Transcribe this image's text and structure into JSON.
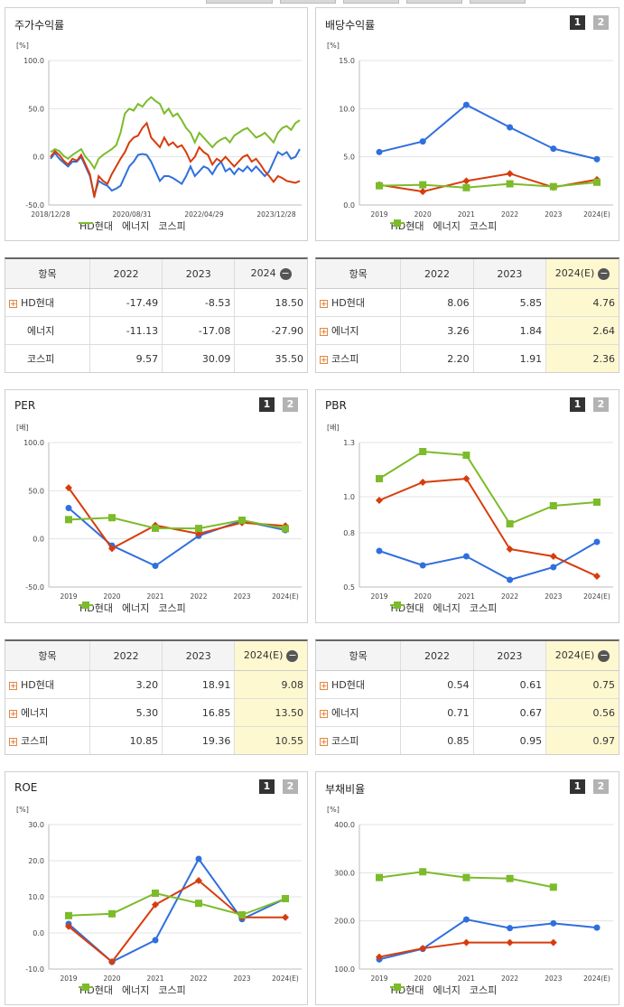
{
  "panels": [
    {
      "id": "stock",
      "title": "주가수익률",
      "unit": "[%]",
      "yticks": [
        "100.0",
        "50.0",
        "0.0",
        "-50.0"
      ],
      "ylim": [
        -50,
        100
      ],
      "xticks": [
        "2018/12/28",
        "2020/08/31",
        "2022/04/29",
        "2023/12/28"
      ],
      "pager": null
    },
    {
      "id": "div",
      "title": "배당수익률",
      "unit": "[%]",
      "yticks": [
        "15.0",
        "10.0",
        "5.0",
        "0.0"
      ],
      "ylim": [
        0,
        15
      ],
      "pager": [
        "1",
        "2"
      ]
    },
    {
      "id": "per",
      "title": "PER",
      "unit": "[배]",
      "yticks": [
        "100.0",
        "50.0",
        "0.0",
        "-50.0"
      ],
      "ylim": [
        -50,
        100
      ],
      "pager": [
        "1",
        "2"
      ]
    },
    {
      "id": "pbr",
      "title": "PBR",
      "unit": "[배]",
      "yticks": [
        "1.3",
        "1.0",
        "0.8",
        "0.5"
      ],
      "ylim": [
        0.5,
        1.3
      ],
      "pager": [
        "1",
        "2"
      ]
    },
    {
      "id": "roe",
      "title": "ROE",
      "unit": "[%]",
      "yticks": [
        "30.0",
        "20.0",
        "10.0",
        "0.0",
        "-10.0"
      ],
      "ylim": [
        -10,
        30
      ],
      "pager": [
        "1",
        "2"
      ]
    },
    {
      "id": "debt",
      "title": "부채비율",
      "unit": "[%]",
      "yticks": [
        "400.0",
        "300.0",
        "200.0",
        "100.0"
      ],
      "ylim": [
        100,
        400
      ],
      "pager": [
        "1",
        "2"
      ]
    }
  ],
  "years": [
    "2019",
    "2020",
    "2021",
    "2022",
    "2023",
    "2024(E)"
  ],
  "series_names": [
    "HD현대",
    "에너지",
    "코스피"
  ],
  "colors": {
    "hd": "#2f6fde",
    "energy": "#d83c0c",
    "kospi": "#7cbb2a"
  },
  "chart_data": [
    {
      "id": "stock",
      "type": "line",
      "title": "주가수익률",
      "ylabel": "[%]",
      "ylim": [
        -50,
        100
      ],
      "x_ticks": [
        "2018/12/28",
        "2020/08/31",
        "2022/04/29",
        "2023/12/28"
      ],
      "series": [
        {
          "name": "HD현대",
          "values": [
            -2,
            4,
            -2,
            -6,
            -10,
            -5,
            -5,
            0,
            -10,
            -20,
            -40,
            -25,
            -28,
            -30,
            -35,
            -33,
            -30,
            -20,
            -10,
            -5,
            2,
            3,
            2,
            -5,
            -15,
            -25,
            -20,
            -20,
            -22,
            -25,
            -28,
            -20,
            -10,
            -20,
            -15,
            -10,
            -12,
            -18,
            -10,
            -5,
            -15,
            -12,
            -18,
            -12,
            -15,
            -10,
            -15,
            -10,
            -15,
            -20,
            -15,
            -5,
            5,
            2,
            5,
            -2,
            0,
            8
          ]
        },
        {
          "name": "에너지",
          "values": [
            0,
            6,
            2,
            -4,
            -8,
            -2,
            -4,
            2,
            -8,
            -18,
            -42,
            -20,
            -25,
            -28,
            -18,
            -10,
            -2,
            5,
            15,
            20,
            22,
            30,
            35,
            20,
            15,
            10,
            20,
            12,
            15,
            10,
            12,
            5,
            -5,
            0,
            10,
            5,
            2,
            -8,
            -2,
            -5,
            0,
            -5,
            -10,
            -5,
            0,
            2,
            -5,
            -2,
            -8,
            -15,
            -20,
            -26,
            -20,
            -22,
            -25,
            -26,
            -27,
            -25
          ]
        },
        {
          "name": "코스피",
          "values": [
            5,
            8,
            6,
            1,
            -2,
            2,
            5,
            8,
            0,
            -5,
            -12,
            -2,
            2,
            5,
            8,
            12,
            25,
            45,
            50,
            48,
            55,
            52,
            58,
            62,
            58,
            55,
            45,
            50,
            42,
            45,
            38,
            30,
            25,
            15,
            25,
            20,
            15,
            10,
            15,
            18,
            20,
            15,
            22,
            25,
            28,
            30,
            25,
            20,
            22,
            25,
            20,
            15,
            25,
            30,
            32,
            28,
            35,
            38
          ]
        }
      ]
    },
    {
      "id": "div",
      "type": "line",
      "title": "배당수익률",
      "ylabel": "[%]",
      "ylim": [
        0,
        15
      ],
      "categories": [
        "2019",
        "2020",
        "2021",
        "2022",
        "2023",
        "2024(E)"
      ],
      "series": [
        {
          "name": "HD현대",
          "values": [
            5.5,
            6.6,
            10.4,
            8.06,
            5.85,
            4.76
          ]
        },
        {
          "name": "에너지",
          "values": [
            2.1,
            1.4,
            2.5,
            3.26,
            1.84,
            2.64
          ]
        },
        {
          "name": "코스피",
          "values": [
            2.0,
            2.1,
            1.8,
            2.2,
            1.91,
            2.36
          ]
        }
      ]
    },
    {
      "id": "per",
      "type": "line",
      "title": "PER",
      "ylabel": "[배]",
      "ylim": [
        -50,
        100
      ],
      "categories": [
        "2019",
        "2020",
        "2021",
        "2022",
        "2023",
        "2024(E)"
      ],
      "series": [
        {
          "name": "HD현대",
          "values": [
            32,
            -7,
            -28,
            3.2,
            18.91,
            9.08
          ]
        },
        {
          "name": "에너지",
          "values": [
            53,
            -10,
            14,
            5.3,
            16.85,
            13.5
          ]
        },
        {
          "name": "코스피",
          "values": [
            20,
            22,
            11,
            10.85,
            19.36,
            10.55
          ]
        }
      ]
    },
    {
      "id": "pbr",
      "type": "line",
      "title": "PBR",
      "ylabel": "[배]",
      "ylim": [
        0.5,
        1.3
      ],
      "categories": [
        "2019",
        "2020",
        "2021",
        "2022",
        "2023",
        "2024(E)"
      ],
      "series": [
        {
          "name": "HD현대",
          "values": [
            0.7,
            0.62,
            0.67,
            0.54,
            0.61,
            0.75
          ]
        },
        {
          "name": "에너지",
          "values": [
            0.98,
            1.08,
            1.1,
            0.71,
            0.67,
            0.56
          ]
        },
        {
          "name": "코스피",
          "values": [
            1.1,
            1.25,
            1.23,
            0.85,
            0.95,
            0.97
          ]
        }
      ]
    },
    {
      "id": "roe",
      "type": "line",
      "title": "ROE",
      "ylabel": "[%]",
      "ylim": [
        -10,
        30
      ],
      "categories": [
        "2019",
        "2020",
        "2021",
        "2022",
        "2023",
        "2024(E)"
      ],
      "series": [
        {
          "name": "HD현대",
          "values": [
            2.5,
            -8.0,
            -2.0,
            20.5,
            3.8,
            9.5
          ]
        },
        {
          "name": "에너지",
          "values": [
            1.8,
            -8.0,
            7.8,
            14.5,
            4.3,
            4.3
          ]
        },
        {
          "name": "코스피",
          "values": [
            4.8,
            5.3,
            11.0,
            8.2,
            5.0,
            9.5
          ]
        }
      ]
    },
    {
      "id": "debt",
      "type": "line",
      "title": "부채비율",
      "ylabel": "[%]",
      "ylim": [
        100,
        400
      ],
      "categories": [
        "2019",
        "2020",
        "2021",
        "2022",
        "2023",
        "2024(E)"
      ],
      "series": [
        {
          "name": "HD현대",
          "values": [
            120,
            142,
            203,
            185,
            195,
            186
          ]
        },
        {
          "name": "에너지",
          "values": [
            125,
            143,
            155,
            155,
            155,
            null
          ]
        },
        {
          "name": "코스피",
          "values": [
            290,
            302,
            290,
            288,
            270,
            null
          ]
        }
      ]
    }
  ],
  "tables": [
    {
      "id": "stock",
      "head": [
        "항목",
        "2022",
        "2023",
        "2024"
      ],
      "head_icon": "minus-circle-icon",
      "rows": [
        {
          "name": "HD현대",
          "vals": [
            "-17.49",
            "-8.53",
            "18.50"
          ],
          "plus": true
        },
        {
          "name": "에너지",
          "vals": [
            "-11.13",
            "-17.08",
            "-27.90"
          ],
          "plus": false
        },
        {
          "name": "코스피",
          "vals": [
            "9.57",
            "30.09",
            "35.50"
          ],
          "plus": false
        }
      ]
    },
    {
      "id": "div",
      "head": [
        "항목",
        "2022",
        "2023",
        "2024(E)"
      ],
      "head_icon": "minus-circle-icon",
      "rows": [
        {
          "name": "HD현대",
          "vals": [
            "8.06",
            "5.85",
            "4.76"
          ],
          "plus": true
        },
        {
          "name": "에너지",
          "vals": [
            "3.26",
            "1.84",
            "2.64"
          ],
          "plus": true
        },
        {
          "name": "코스피",
          "vals": [
            "2.20",
            "1.91",
            "2.36"
          ],
          "plus": true
        }
      ]
    },
    {
      "id": "per",
      "head": [
        "항목",
        "2022",
        "2023",
        "2024(E)"
      ],
      "head_icon": "minus-circle-icon",
      "rows": [
        {
          "name": "HD현대",
          "vals": [
            "3.20",
            "18.91",
            "9.08"
          ],
          "plus": true
        },
        {
          "name": "에너지",
          "vals": [
            "5.30",
            "16.85",
            "13.50"
          ],
          "plus": true
        },
        {
          "name": "코스피",
          "vals": [
            "10.85",
            "19.36",
            "10.55"
          ],
          "plus": true
        }
      ]
    },
    {
      "id": "pbr",
      "head": [
        "항목",
        "2022",
        "2023",
        "2024(E)"
      ],
      "head_icon": "minus-circle-icon",
      "rows": [
        {
          "name": "HD현대",
          "vals": [
            "0.54",
            "0.61",
            "0.75"
          ],
          "plus": true
        },
        {
          "name": "에너지",
          "vals": [
            "0.71",
            "0.67",
            "0.56"
          ],
          "plus": true
        },
        {
          "name": "코스피",
          "vals": [
            "0.85",
            "0.95",
            "0.97"
          ],
          "plus": true
        }
      ]
    }
  ]
}
